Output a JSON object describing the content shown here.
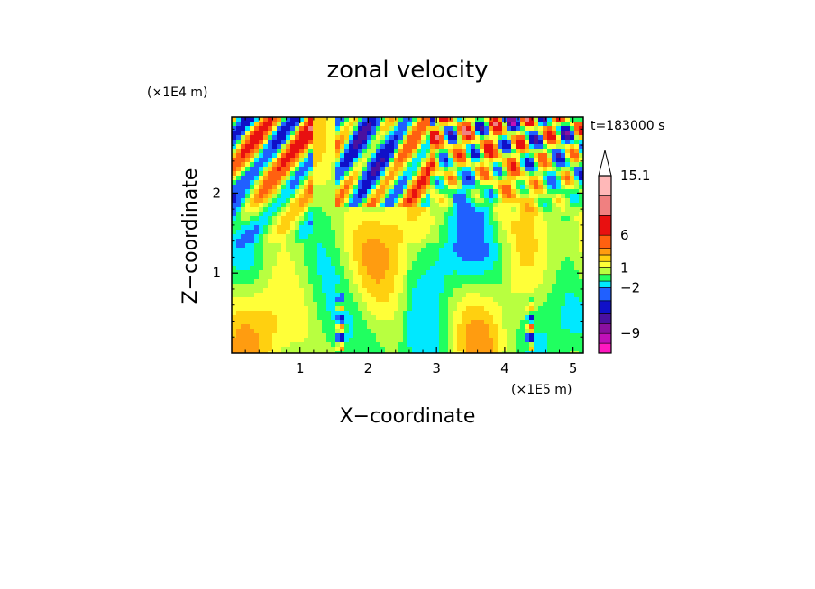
{
  "chart_data": {
    "type": "heatmap",
    "title": "zonal velocity",
    "xlabel": "X−coordinate",
    "ylabel": "Z−coordinate",
    "x_unit": "(×1E5 m)",
    "y_unit": "(×1E4 m)",
    "time_label": "t=183000 s",
    "xlim": [
      0,
      5.15
    ],
    "ylim": [
      0,
      2.95
    ],
    "x_ticks": [
      1,
      2,
      3,
      4,
      5
    ],
    "y_ticks": [
      1,
      2
    ],
    "x_tick_labels": [
      "1",
      "2",
      "3",
      "4",
      "5"
    ],
    "y_tick_labels": [
      "1",
      "2"
    ],
    "colorbar": {
      "levels_bottom_to_top": [
        -12,
        -10.5,
        -9,
        -7.5,
        -6,
        -4,
        -2,
        -1,
        0,
        1,
        2,
        3,
        4,
        6,
        9,
        12,
        15.1
      ],
      "colors_bottom_to_top": [
        "#ff18c0",
        "#c010b8",
        "#8a10a0",
        "#4a10a0",
        "#1010c8",
        "#2060ff",
        "#00e8ff",
        "#20ff60",
        "#b8ff40",
        "#ffff38",
        "#ffd010",
        "#ff9c10",
        "#ff6010",
        "#e81010",
        "#f08080",
        "#ffb8b8"
      ],
      "tick_labels": [
        "15.1",
        "6",
        "1",
        "−2",
        "−9"
      ],
      "tick_values": [
        15.1,
        6,
        1,
        -2,
        -9
      ],
      "extend_top": true
    }
  }
}
